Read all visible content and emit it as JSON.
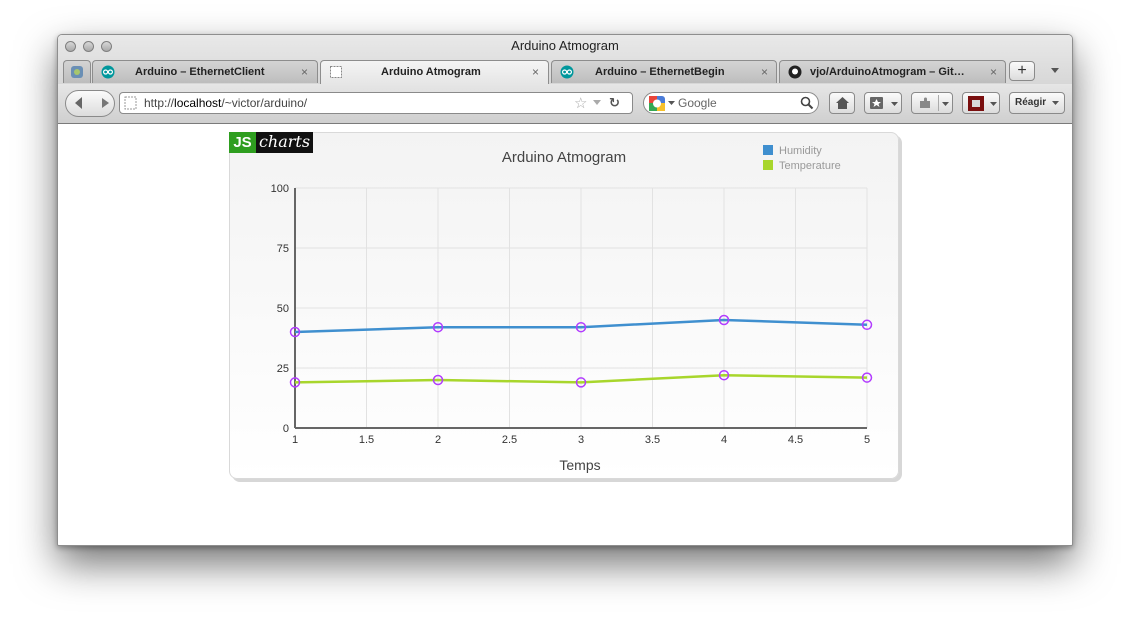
{
  "window": {
    "title": "Arduino Atmogram"
  },
  "tabs": [
    {
      "label": "Arduino – EthernetClient",
      "close": "×"
    },
    {
      "label": "Arduino Atmogram",
      "close": "×"
    },
    {
      "label": "Arduino – EthernetBegin",
      "close": "×"
    },
    {
      "label": "vjo/ArduinoAtmogram – Git…",
      "close": "×"
    }
  ],
  "toolbar": {
    "url_prefix": "http://",
    "url_host": "localhost",
    "url_path": "/~victor/arduino/",
    "search_placeholder": "Google",
    "reagir_label": "Réagir",
    "new_tab": "+"
  },
  "logo": {
    "js": "JS",
    "charts": "charts"
  },
  "colors": {
    "humidity": "#3f8fcf",
    "temperature": "#a8d62c",
    "marker": "#b23cff",
    "grid": "#e2e2e2"
  },
  "chart_data": {
    "type": "line",
    "title": "Arduino Atmogram",
    "xlabel": "Temps",
    "ylabel": "",
    "xlim": [
      1,
      5
    ],
    "ylim": [
      0,
      100
    ],
    "x_ticks": [
      "1",
      "1.5",
      "2",
      "2.5",
      "3",
      "3.5",
      "4",
      "4.5",
      "5"
    ],
    "y_ticks": [
      "0",
      "25",
      "50",
      "75",
      "100"
    ],
    "x": [
      1,
      2,
      3,
      4,
      5
    ],
    "series": [
      {
        "name": "Humidity",
        "values": [
          40,
          42,
          42,
          45,
          43
        ]
      },
      {
        "name": "Temperature",
        "values": [
          19,
          20,
          19,
          22,
          21
        ]
      }
    ],
    "grid": true,
    "legend": "top-right"
  }
}
